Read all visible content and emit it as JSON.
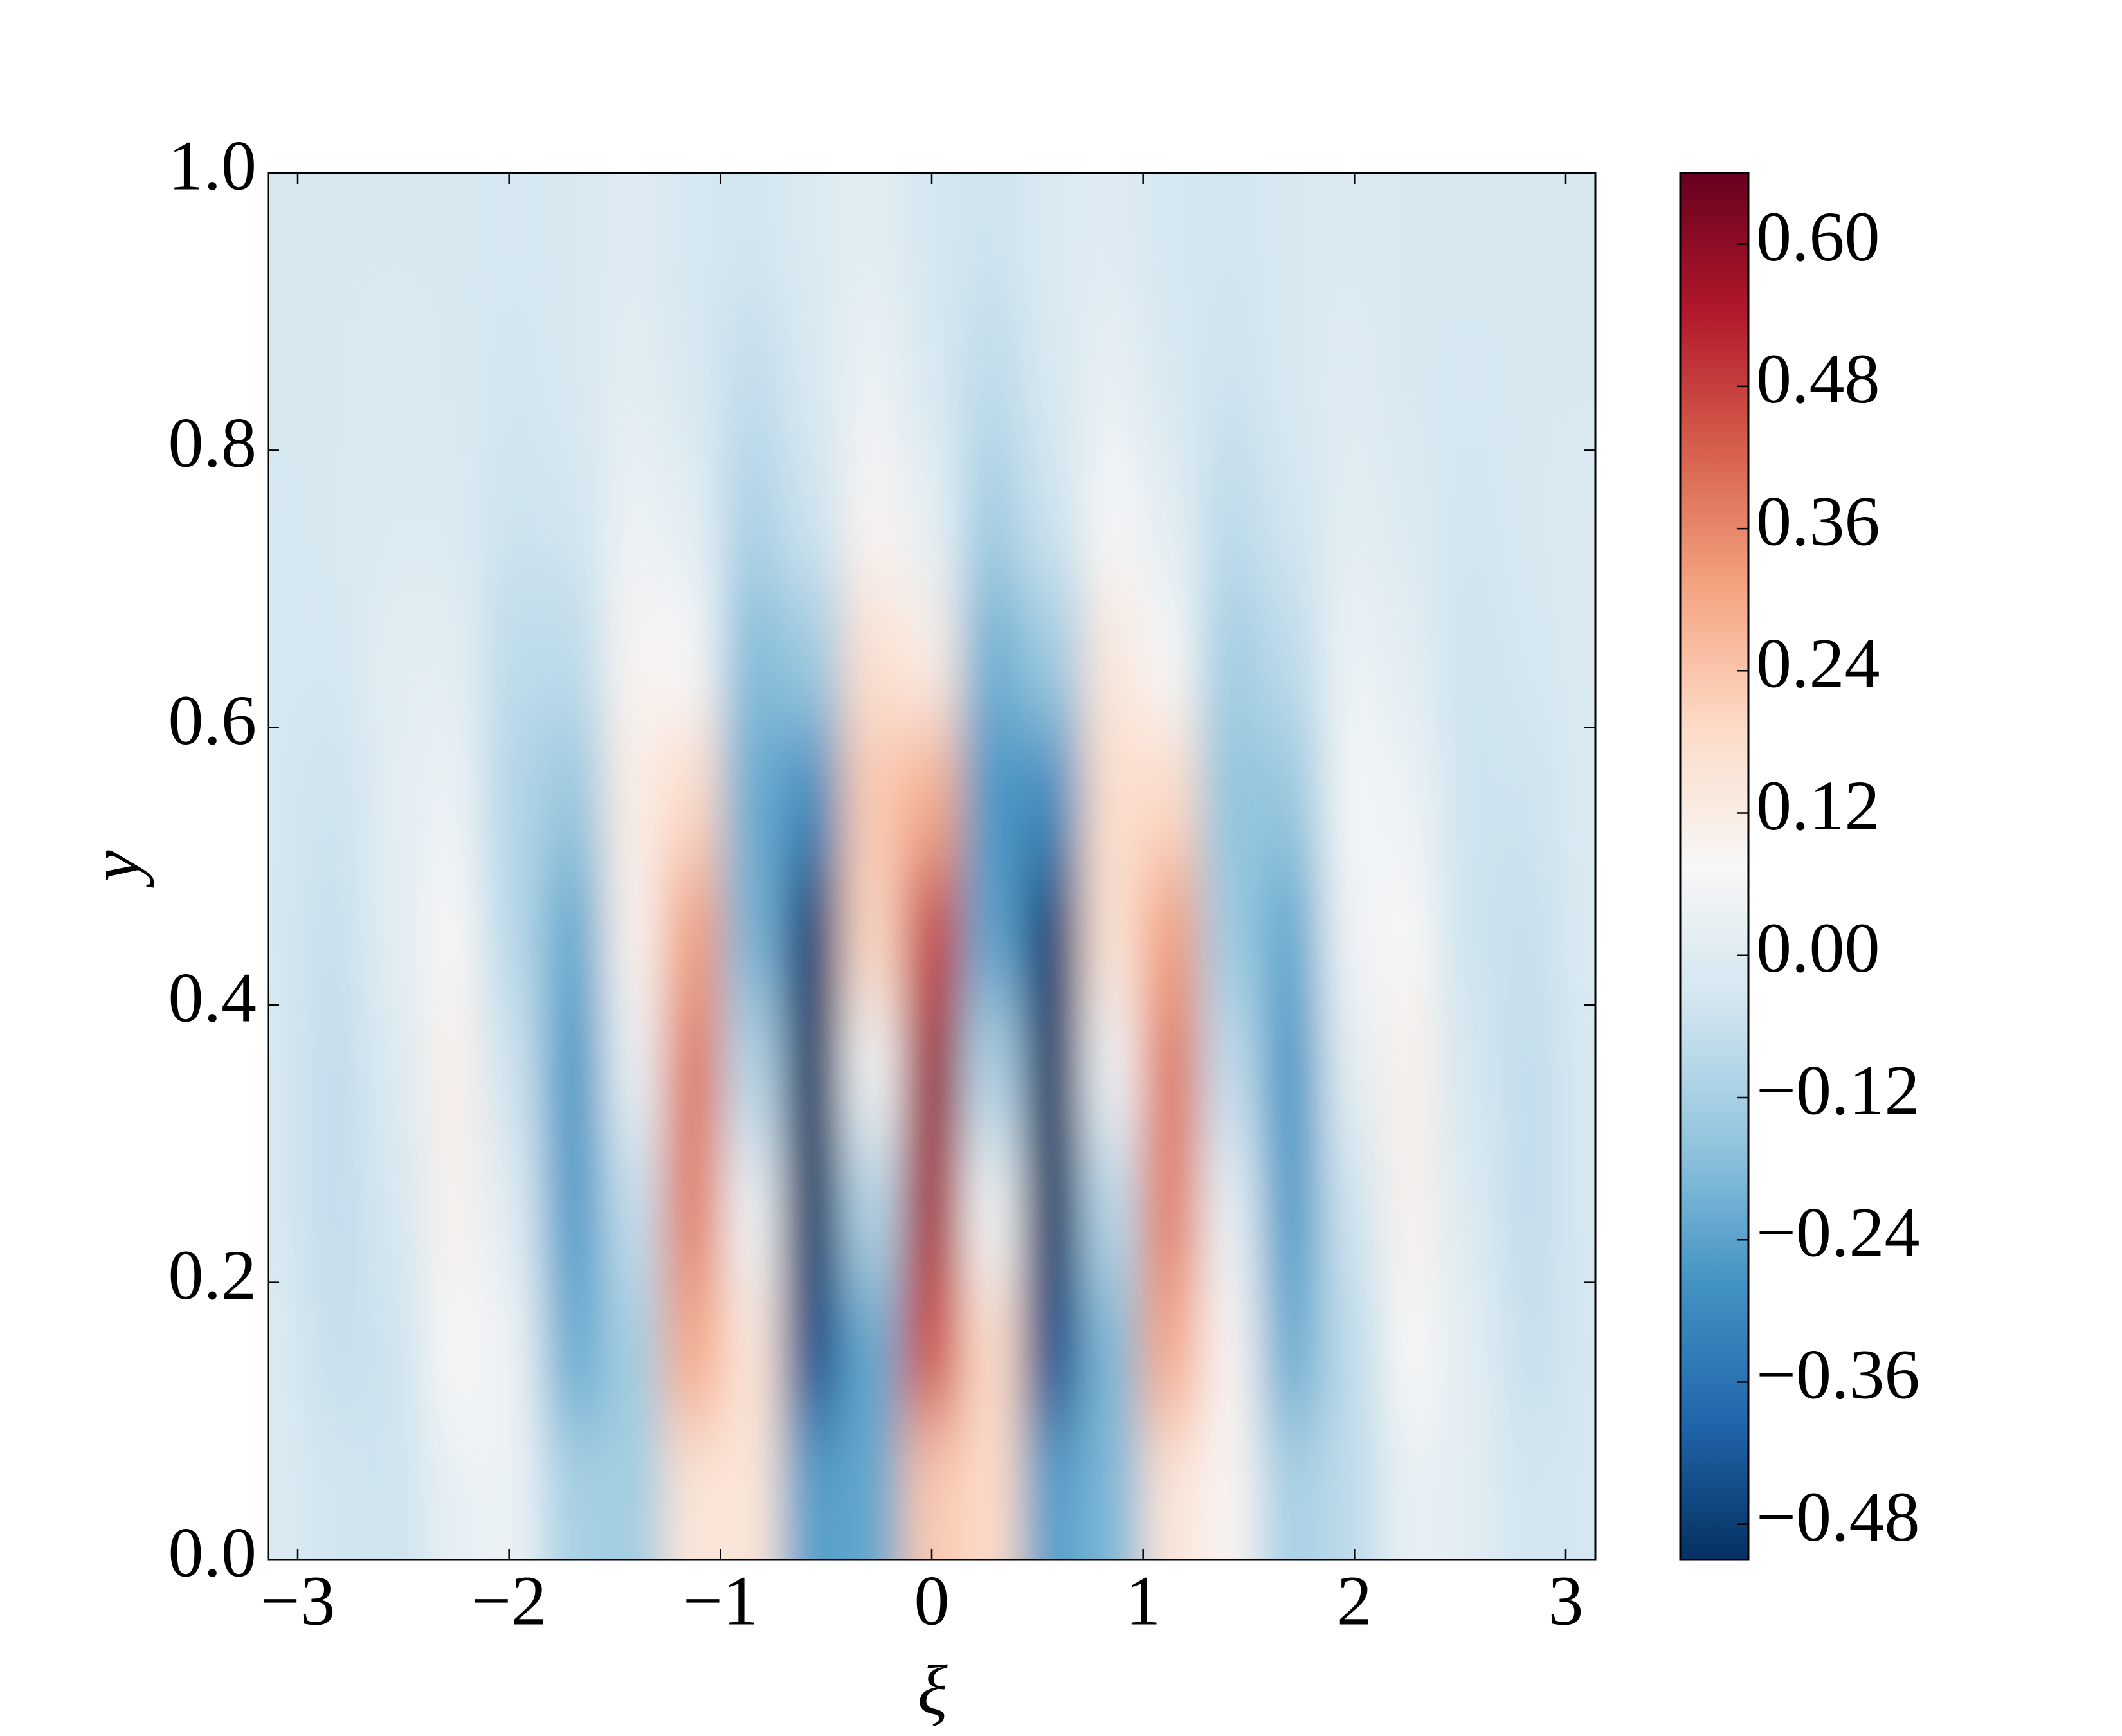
{
  "chart_data": {
    "type": "contour",
    "xlabel": "ξ",
    "ylabel": "y",
    "xlim": [
      -3.14,
      3.14
    ],
    "ylim": [
      0,
      1
    ],
    "xticks": [
      {
        "value": -3,
        "label": "−3"
      },
      {
        "value": -2,
        "label": "−2"
      },
      {
        "value": -1,
        "label": "−1"
      },
      0,
      1,
      2,
      3
    ],
    "yticks": [
      {
        "value": 0,
        "label": "0.0"
      },
      0.2,
      0.4,
      0.6,
      0.8,
      {
        "value": 1,
        "label": "1.0"
      }
    ],
    "colormap": "RdBu_r",
    "zlim": [
      -0.51,
      0.66
    ],
    "cticks": [
      {
        "value": -0.48,
        "label": "−0.48"
      },
      {
        "value": -0.36,
        "label": "−0.36"
      },
      {
        "value": -0.24,
        "label": "−0.24"
      },
      {
        "value": -0.12,
        "label": "−0.12"
      },
      {
        "value": 0,
        "label": "0.00"
      },
      0.12,
      0.24,
      0.36,
      0.48,
      {
        "value": 0.6,
        "label": "0.60"
      }
    ],
    "x": [
      -3.11,
      -2.83,
      -2.54,
      -2.26,
      -1.98,
      -1.7,
      -1.41,
      -1.13,
      -0.85,
      -0.57,
      -0.28,
      0,
      0.28,
      0.57,
      0.85,
      1.13,
      1.41,
      1.7,
      1.98,
      2.26,
      2.54,
      2.83,
      3.11
    ],
    "y": [
      0.05,
      0.15,
      0.25,
      0.35,
      0.45,
      0.55,
      0.65,
      0.75,
      0.85,
      0.95
    ],
    "z": [
      [
        -0.01,
        -0.04,
        -0.05,
        0.03,
        0.04,
        -0.12,
        -0.13,
        0.15,
        0.15,
        -0.25,
        -0.23,
        0.23,
        0.19,
        -0.25,
        -0.19,
        0.15,
        0.09,
        -0.12,
        -0.08,
        0.03,
        0.01,
        -0.04,
        -0.03
      ],
      [
        -0.01,
        -0.06,
        -0.05,
        0.08,
        0.04,
        -0.22,
        -0.13,
        0.3,
        0.15,
        -0.45,
        -0.23,
        0.46,
        0.19,
        -0.45,
        -0.19,
        0.3,
        0.09,
        -0.22,
        -0.08,
        0.08,
        0.01,
        -0.06,
        -0.03
      ],
      [
        -0.02,
        -0.07,
        -0.03,
        0.1,
        0.0,
        -0.26,
        -0.07,
        0.38,
        0.05,
        -0.56,
        -0.1,
        0.57,
        0.06,
        -0.56,
        -0.09,
        0.38,
        0.03,
        -0.26,
        -0.05,
        0.1,
        -0.01,
        -0.07,
        -0.02
      ],
      [
        -0.02,
        -0.07,
        -0.01,
        0.11,
        -0.05,
        -0.27,
        0.03,
        0.39,
        -0.09,
        -0.58,
        0.06,
        0.59,
        -0.1,
        -0.58,
        0.05,
        0.39,
        -0.07,
        -0.27,
        0.01,
        0.11,
        -0.03,
        -0.07,
        -0.02
      ],
      [
        -0.03,
        -0.06,
        0.01,
        0.08,
        -0.09,
        -0.23,
        0.1,
        0.32,
        -0.2,
        -0.48,
        0.2,
        0.48,
        -0.24,
        -0.48,
        0.16,
        0.32,
        -0.14,
        -0.23,
        0.05,
        0.08,
        -0.05,
        -0.06,
        -0.01
      ],
      [
        -0.03,
        -0.05,
        0.01,
        0.04,
        -0.1,
        -0.15,
        0.12,
        0.19,
        -0.22,
        -0.3,
        0.23,
        0.29,
        -0.27,
        -0.3,
        0.18,
        0.19,
        -0.16,
        -0.15,
        0.06,
        0.04,
        -0.05,
        -0.05,
        -0.01
      ],
      [
        -0.03,
        -0.03,
        0.01,
        0.01,
        -0.08,
        -0.08,
        0.09,
        0.07,
        -0.18,
        -0.14,
        0.17,
        0.12,
        -0.21,
        -0.14,
        0.14,
        0.07,
        -0.13,
        -0.08,
        0.04,
        0.01,
        -0.05,
        -0.03,
        -0.01
      ],
      [
        -0.03,
        -0.02,
        -0.01,
        -0.01,
        -0.05,
        -0.04,
        0.04,
        0.01,
        -0.11,
        -0.05,
        0.09,
        0.02,
        -0.13,
        -0.05,
        0.07,
        0.01,
        -0.08,
        -0.04,
        0.01,
        -0.01,
        -0.04,
        -0.02,
        -0.01
      ],
      [
        -0.02,
        -0.02,
        -0.01,
        -0.02,
        -0.04,
        -0.02,
        0.01,
        -0.02,
        -0.07,
        -0.02,
        0.04,
        -0.02,
        -0.08,
        -0.02,
        0.03,
        -0.02,
        -0.05,
        -0.02,
        0.0,
        -0.02,
        -0.03,
        -0.02,
        -0.02
      ],
      [
        -0.02,
        -0.02,
        -0.02,
        -0.02,
        -0.03,
        -0.02,
        0.0,
        -0.03,
        -0.04,
        -0.01,
        0.01,
        -0.03,
        -0.05,
        -0.01,
        0.0,
        -0.03,
        -0.04,
        -0.02,
        -0.01,
        -0.02,
        -0.02,
        -0.02,
        -0.02
      ]
    ]
  }
}
